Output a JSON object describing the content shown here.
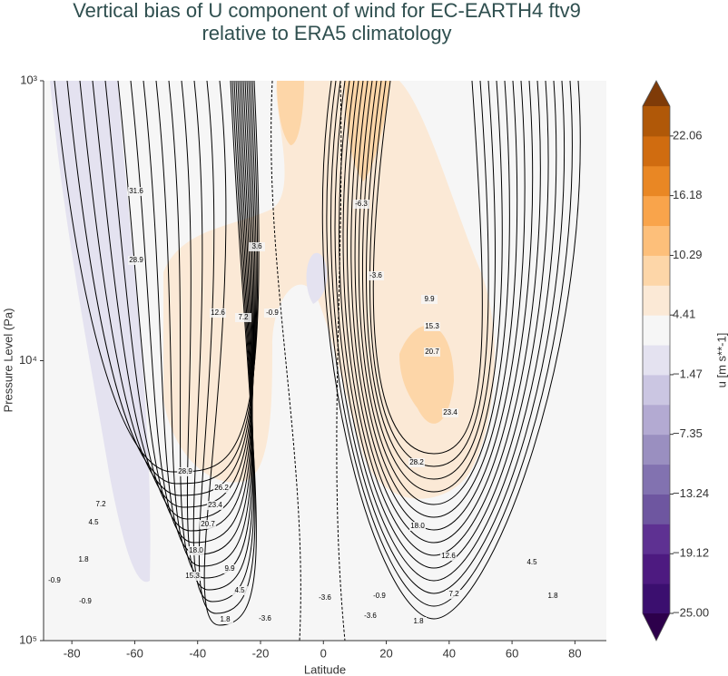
{
  "chart_data": {
    "type": "contour",
    "title": "Vertical bias of U component of wind for EC-EARTH4 ftv9",
    "subtitle": "relative to ERA5 climatology",
    "x_label": "Latitude",
    "y_label": "Pressure Level (Pa)",
    "xlim": [
      -89,
      90
    ],
    "xticks": [
      -80,
      -60,
      -40,
      -20,
      0,
      20,
      40,
      60,
      80
    ],
    "ylim": [
      1000,
      100000
    ],
    "y_scale": "log",
    "yticks": [
      {
        "value": 1000,
        "label": "10³"
      },
      {
        "value": 10000,
        "label": "10⁴"
      },
      {
        "value": 100000,
        "label": "10⁵"
      }
    ],
    "colorbar": {
      "label": "u [m s**-1]",
      "clim": [
        -25,
        25
      ],
      "colors": [
        "#3b0f6f",
        "#4d1a80",
        "#5e3192",
        "#6e56a0",
        "#8272b0",
        "#9a8fc0",
        "#b3aad2",
        "#cbc6e2",
        "#e4e2f0",
        "#f6f6f6",
        "#fbe9d6",
        "#fdd6a8",
        "#fdbf7a",
        "#f9a44b",
        "#e98724",
        "#d06c10",
        "#b05808"
      ],
      "under_color": "#2d004b",
      "over_color": "#7f3b08",
      "ticks": [
        22.06,
        16.18,
        10.29,
        4.41,
        {
          "value": -1.47,
          "label": "−1.47"
        },
        {
          "value": -7.35,
          "label": "−7.35"
        },
        {
          "value": -13.24,
          "label": "−13.24"
        },
        {
          "value": -19.12,
          "label": "−19.12"
        },
        {
          "value": -25,
          "label": "−25.00"
        }
      ]
    },
    "contour_labels": [
      "31.6",
      "28.9",
      "12.6",
      "7.2",
      "-0.9",
      "3.6",
      "-6.3",
      "-3.6",
      "9.9",
      "15.3",
      "20.7",
      "23.4",
      "28.2",
      "28.9",
      "26.2",
      "23.4",
      "20.7",
      "18.0",
      "15.3",
      "9.9",
      "4.5",
      "1.8",
      "-3.6",
      "7.2",
      "4.5",
      "1.8",
      "-0.9",
      "-0.9",
      "-3.6",
      "-3.6",
      "-0.9",
      "1.8",
      "7.2",
      "12.6",
      "18.0",
      "4.5",
      "1.8"
    ]
  }
}
